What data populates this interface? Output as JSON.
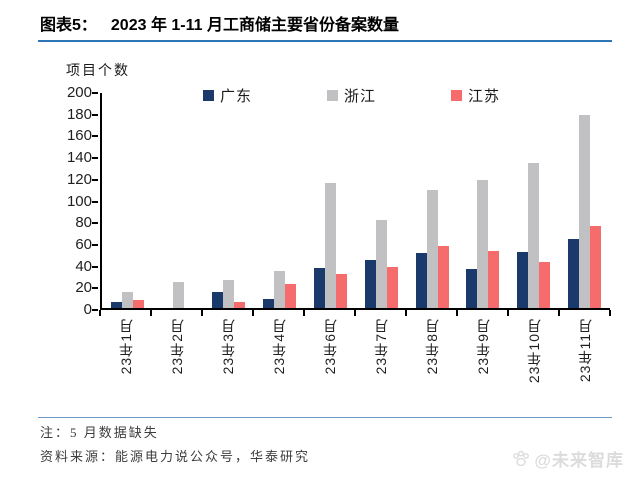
{
  "page": {
    "title_prefix": "图表5：",
    "title": "2023 年 1-11 月工商储主要省份备案数量",
    "note": "注：5 月数据缺失",
    "source": "资料来源：能源电力说公众号，华泰研究",
    "watermark": "@未来智库"
  },
  "colors": {
    "title_underline": "#2e75b6",
    "footer_divider": "#6e9bc5",
    "axis": "#000000",
    "watermark": "#dcdcdc"
  },
  "chart_data": {
    "type": "bar",
    "title": "2023 年 1-11 月工商储主要省份备案数量",
    "ylabel": "项目个数",
    "xlabel": "",
    "ylim": [
      0,
      200
    ],
    "ytick_step": 20,
    "grid": false,
    "legend_position": "top",
    "categories": [
      "23年1月",
      "23年2月",
      "23年3月",
      "23年4月",
      "23年6月",
      "23年7月",
      "23年8月",
      "23年9月",
      "23年10月",
      "23年11月"
    ],
    "series": [
      {
        "key": "guangdong",
        "name": "广东",
        "color": "#1a3a6b",
        "values": [
          6,
          0,
          15,
          8,
          37,
          44,
          51,
          36,
          52,
          64
        ]
      },
      {
        "key": "zhejiang",
        "name": "浙江",
        "color": "#c1c1c4",
        "values": [
          15,
          24,
          26,
          34,
          115,
          81,
          109,
          118,
          134,
          178
        ]
      },
      {
        "key": "jiangsu",
        "name": "江苏",
        "color": "#f66b6b",
        "values": [
          7,
          0,
          6,
          22,
          31,
          38,
          57,
          53,
          42,
          76
        ]
      }
    ]
  }
}
